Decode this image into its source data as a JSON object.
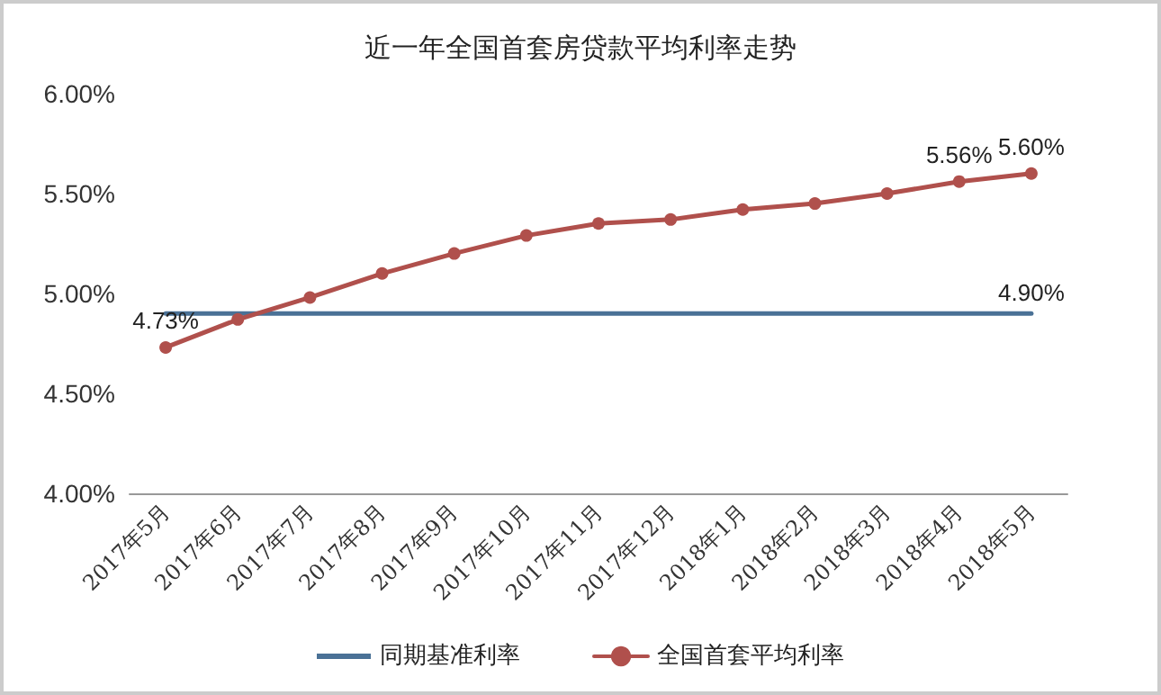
{
  "chart_data": {
    "type": "line",
    "title": "近一年全国首套房贷款平均利率走势",
    "categories": [
      "2017年5月",
      "2017年6月",
      "2017年7月",
      "2017年8月",
      "2017年9月",
      "2017年10月",
      "2017年11月",
      "2017年12月",
      "2018年1月",
      "2018年2月",
      "2018年3月",
      "2018年4月",
      "2018年5月"
    ],
    "series": [
      {
        "name": "同期基准利率",
        "color": "#4a7196",
        "marker": "none",
        "values": [
          4.9,
          4.9,
          4.9,
          4.9,
          4.9,
          4.9,
          4.9,
          4.9,
          4.9,
          4.9,
          4.9,
          4.9,
          4.9
        ],
        "value_labels": [
          null,
          null,
          null,
          null,
          null,
          null,
          null,
          null,
          null,
          null,
          null,
          null,
          "4.90%"
        ]
      },
      {
        "name": "全国首套平均利率",
        "color": "#b0504c",
        "marker": "circle",
        "values": [
          4.73,
          4.87,
          4.98,
          5.1,
          5.2,
          5.29,
          5.35,
          5.37,
          5.42,
          5.45,
          5.5,
          5.56,
          5.6
        ],
        "value_labels": [
          "4.73%",
          null,
          null,
          null,
          null,
          null,
          null,
          null,
          null,
          null,
          null,
          "5.56%",
          "5.60%"
        ]
      }
    ],
    "ylim": [
      4,
      6
    ],
    "yticks": [
      {
        "value": 4,
        "label": "4.00%"
      },
      {
        "value": 4.5,
        "label": "4.50%"
      },
      {
        "value": 5,
        "label": "5.00%"
      },
      {
        "value": 5.5,
        "label": "5.50%"
      },
      {
        "value": 6,
        "label": "6.00%"
      }
    ],
    "grid": false,
    "legend": "bottom"
  }
}
